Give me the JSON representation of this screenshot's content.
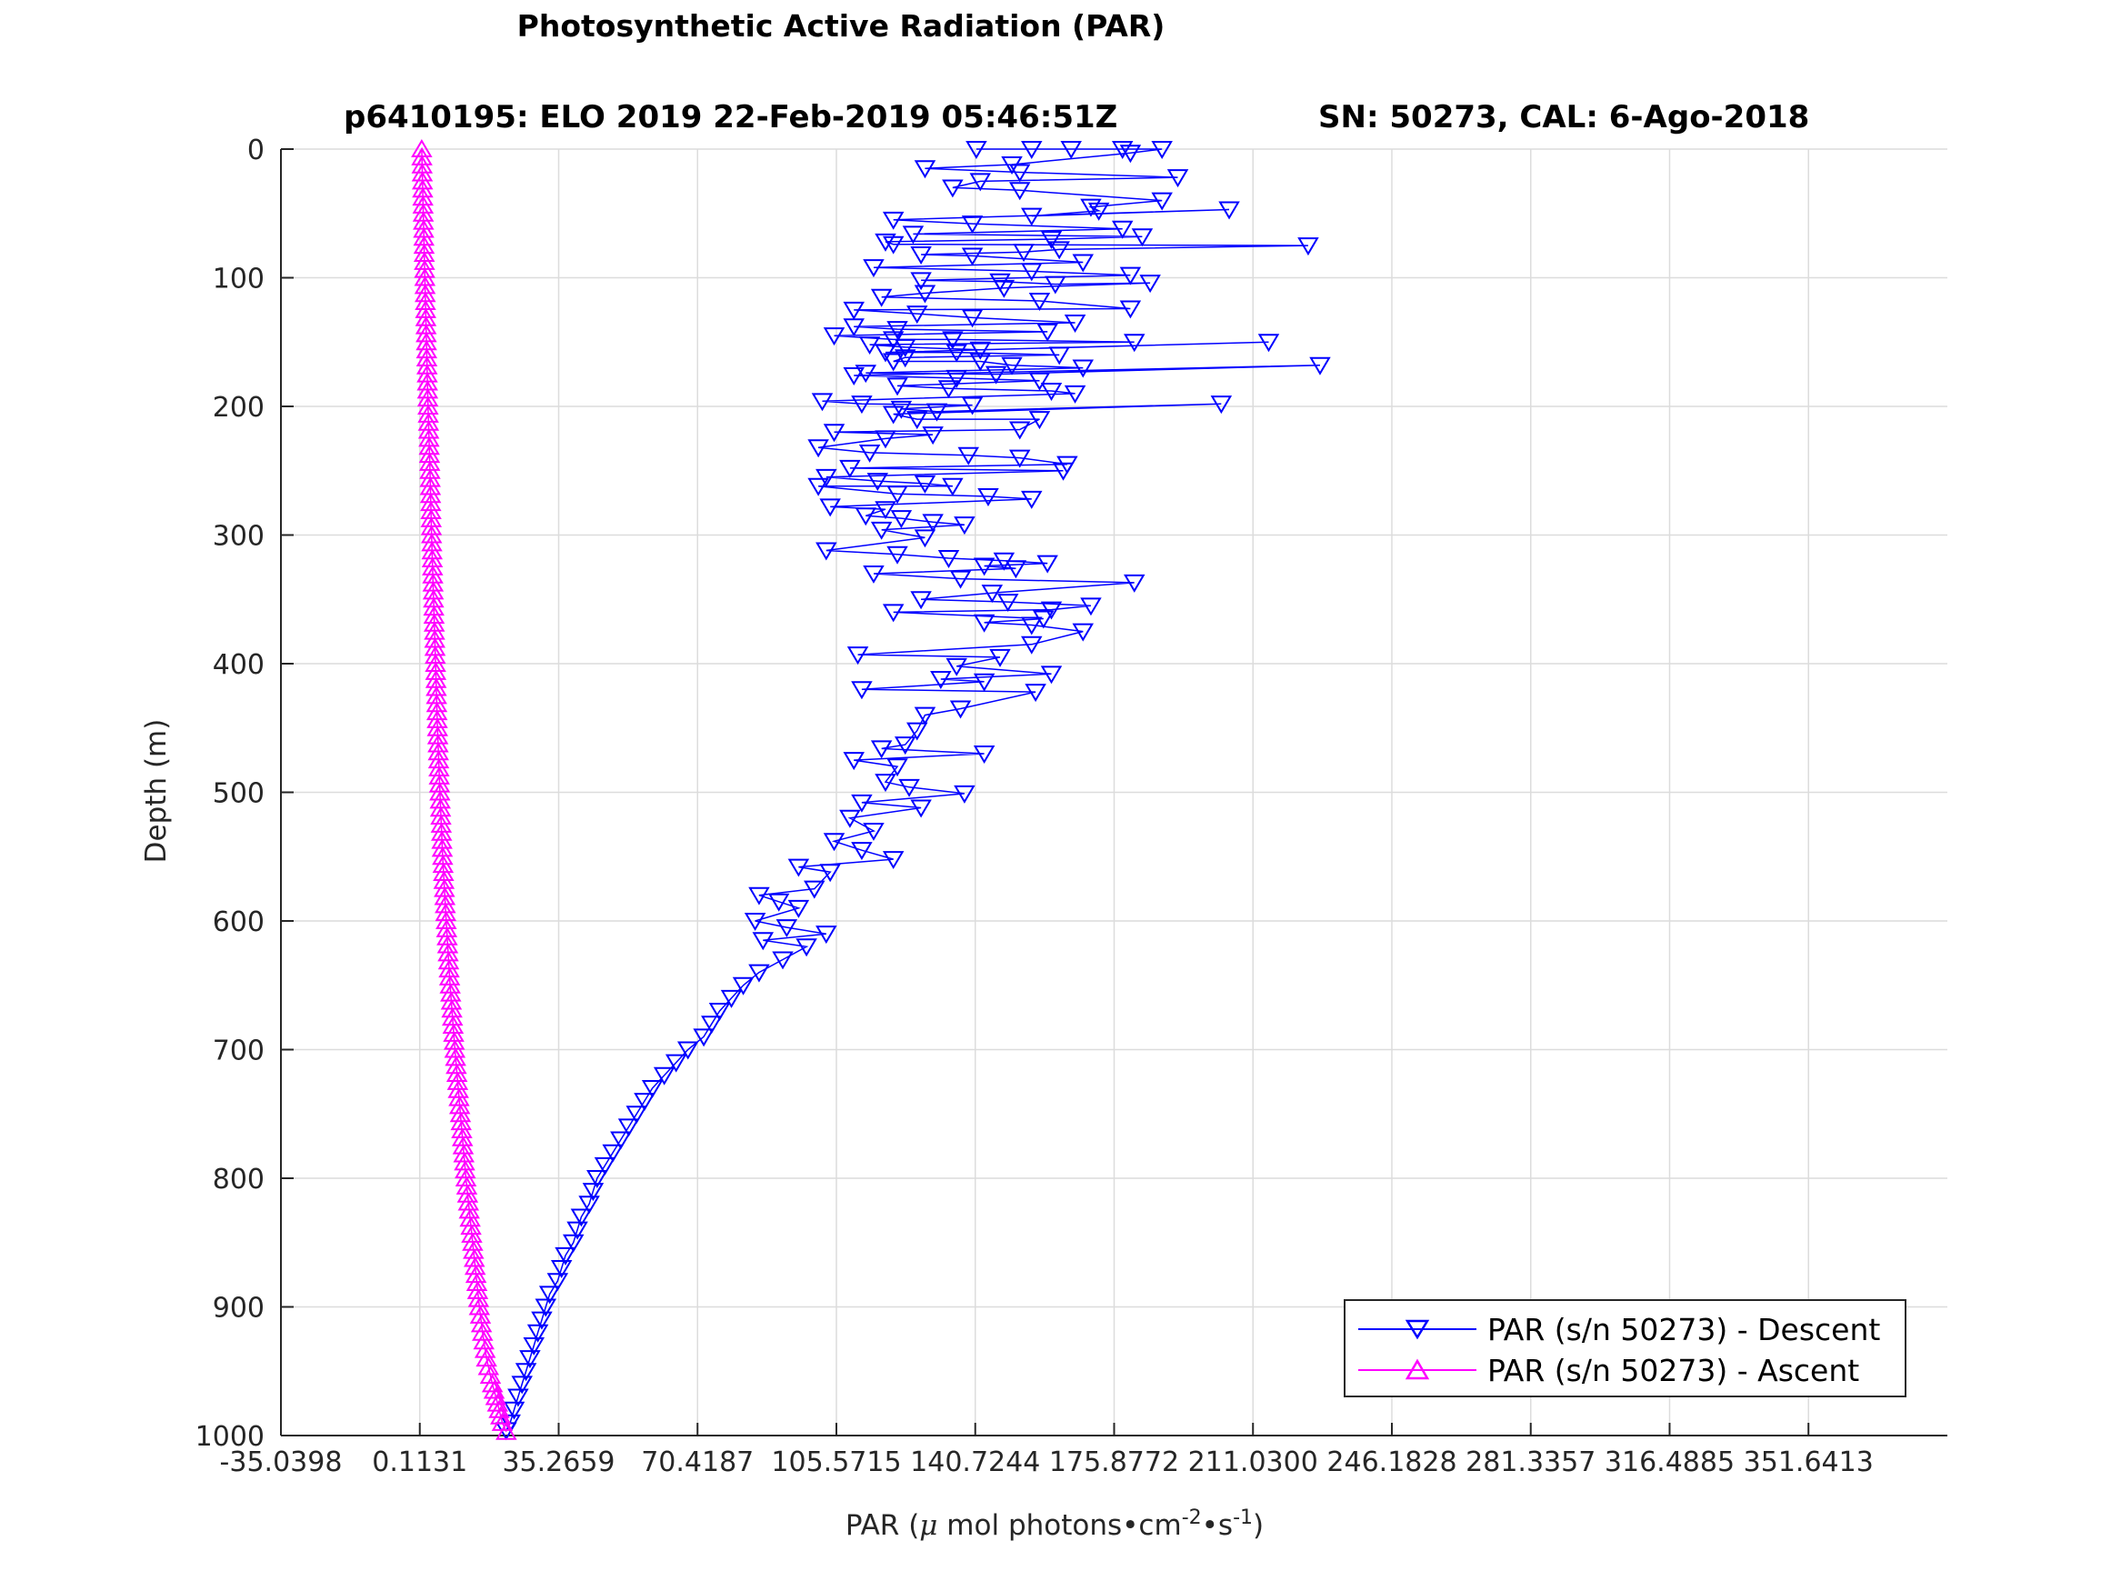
{
  "chart_data": {
    "type": "line",
    "title": "Photosynthetic Active Radiation (PAR)",
    "subtitle_left": "p6410195: ELO 2019 22-Feb-2019 05:46:51Z",
    "subtitle_right": "SN: 50273, CAL: 6-Ago-2018",
    "xlabel": {
      "prefix": "PAR (",
      "mu": "μ",
      "unit": " mol photons•cm",
      "exp1": "-2",
      "mid": "•s",
      "exp2": "-1",
      "suffix": ")"
    },
    "ylabel": "Depth (m)",
    "xlim": [
      -35.0398,
      386.8
    ],
    "ylim": [
      0,
      1000
    ],
    "y_reversed": true,
    "grid": true,
    "x_ticks": [
      -35.0398,
      0.1131,
      35.2659,
      70.4187,
      105.5715,
      140.7244,
      175.8772,
      211.03,
      246.1828,
      281.3357,
      316.4885,
      351.6413
    ],
    "x_tick_labels": [
      "-35.0398",
      "0.1131",
      "35.2659",
      "70.4187",
      "105.5715",
      "140.7244",
      "175.8772",
      "211.0300",
      "246.1828",
      "281.3357",
      "316.4885",
      "351.6413"
    ],
    "y_ticks": [
      0,
      100,
      200,
      300,
      400,
      500,
      600,
      700,
      800,
      900,
      1000
    ],
    "y_tick_labels": [
      "0",
      "100",
      "200",
      "300",
      "400",
      "500",
      "600",
      "700",
      "800",
      "900",
      "1000"
    ],
    "legend_position": "bottom-right",
    "series": [
      {
        "name": "PAR (s/n 50273) - Descent",
        "color": "#0000ff",
        "marker": "triangle-down",
        "points": [
          [
            141,
            0
          ],
          [
            155,
            0
          ],
          [
            165,
            0
          ],
          [
            178,
            0
          ],
          [
            188,
            0
          ],
          [
            180,
            3
          ],
          [
            150,
            12
          ],
          [
            128,
            15
          ],
          [
            152,
            18
          ],
          [
            192,
            22
          ],
          [
            142,
            25
          ],
          [
            135,
            30
          ],
          [
            152,
            32
          ],
          [
            188,
            40
          ],
          [
            170,
            45
          ],
          [
            172,
            48
          ],
          [
            155,
            52
          ],
          [
            205,
            47
          ],
          [
            120,
            55
          ],
          [
            140,
            58
          ],
          [
            178,
            62
          ],
          [
            125,
            66
          ],
          [
            183,
            68
          ],
          [
            160,
            70
          ],
          [
            118,
            72
          ],
          [
            120,
            74
          ],
          [
            225,
            75
          ],
          [
            162,
            78
          ],
          [
            153,
            80
          ],
          [
            127,
            82
          ],
          [
            140,
            83
          ],
          [
            168,
            88
          ],
          [
            115,
            92
          ],
          [
            155,
            95
          ],
          [
            180,
            98
          ],
          [
            127,
            102
          ],
          [
            147,
            103
          ],
          [
            161,
            105
          ],
          [
            185,
            104
          ],
          [
            148,
            108
          ],
          [
            128,
            112
          ],
          [
            117,
            115
          ],
          [
            157,
            118
          ],
          [
            180,
            124
          ],
          [
            110,
            125
          ],
          [
            126,
            128
          ],
          [
            140,
            131
          ],
          [
            166,
            135
          ],
          [
            110,
            138
          ],
          [
            121,
            140
          ],
          [
            159,
            142
          ],
          [
            105,
            145
          ],
          [
            120,
            148
          ],
          [
            135,
            148
          ],
          [
            181,
            150
          ],
          [
            114,
            152
          ],
          [
            123,
            154
          ],
          [
            142,
            156
          ],
          [
            215,
            150
          ],
          [
            118,
            158
          ],
          [
            136,
            158
          ],
          [
            162,
            160
          ],
          [
            123,
            162
          ],
          [
            120,
            165
          ],
          [
            142,
            165
          ],
          [
            150,
            168
          ],
          [
            168,
            170
          ],
          [
            113,
            174
          ],
          [
            146,
            175
          ],
          [
            228,
            168
          ],
          [
            110,
            176
          ],
          [
            136,
            178
          ],
          [
            157,
            180
          ],
          [
            121,
            184
          ],
          [
            134,
            186
          ],
          [
            160,
            188
          ],
          [
            166,
            190
          ],
          [
            102,
            196
          ],
          [
            112,
            198
          ],
          [
            140,
            199
          ],
          [
            122,
            202
          ],
          [
            131,
            204
          ],
          [
            203,
            198
          ],
          [
            120,
            206
          ],
          [
            126,
            210
          ],
          [
            157,
            210
          ],
          [
            152,
            218
          ],
          [
            105,
            220
          ],
          [
            130,
            222
          ],
          [
            118,
            225
          ],
          [
            101,
            232
          ],
          [
            114,
            236
          ],
          [
            139,
            238
          ],
          [
            152,
            240
          ],
          [
            164,
            245
          ],
          [
            109,
            248
          ],
          [
            163,
            250
          ],
          [
            103,
            255
          ],
          [
            116,
            258
          ],
          [
            128,
            260
          ],
          [
            135,
            262
          ],
          [
            101,
            262
          ],
          [
            121,
            268
          ],
          [
            144,
            270
          ],
          [
            155,
            272
          ],
          [
            104,
            278
          ],
          [
            118,
            280
          ],
          [
            113,
            285
          ],
          [
            122,
            287
          ],
          [
            130,
            290
          ],
          [
            138,
            292
          ],
          [
            117,
            296
          ],
          [
            128,
            302
          ],
          [
            103,
            312
          ],
          [
            121,
            315
          ],
          [
            134,
            318
          ],
          [
            148,
            320
          ],
          [
            159,
            322
          ],
          [
            143,
            324
          ],
          [
            151,
            326
          ],
          [
            115,
            330
          ],
          [
            137,
            334
          ],
          [
            181,
            337
          ],
          [
            145,
            345
          ],
          [
            127,
            350
          ],
          [
            149,
            352
          ],
          [
            170,
            355
          ],
          [
            160,
            358
          ],
          [
            120,
            360
          ],
          [
            158,
            365
          ],
          [
            143,
            368
          ],
          [
            155,
            370
          ],
          [
            168,
            375
          ],
          [
            155,
            385
          ],
          [
            111,
            393
          ],
          [
            147,
            395
          ],
          [
            136,
            402
          ],
          [
            160,
            408
          ],
          [
            132,
            412
          ],
          [
            143,
            414
          ],
          [
            112,
            420
          ],
          [
            156,
            422
          ],
          [
            137,
            435
          ],
          [
            128,
            440
          ],
          [
            126,
            452
          ],
          [
            123,
            463
          ],
          [
            117,
            466
          ],
          [
            143,
            470
          ],
          [
            110,
            475
          ],
          [
            121,
            480
          ],
          [
            118,
            492
          ],
          [
            124,
            496
          ],
          [
            138,
            501
          ],
          [
            112,
            508
          ],
          [
            127,
            512
          ],
          [
            109,
            520
          ],
          [
            115,
            530
          ],
          [
            105,
            538
          ],
          [
            112,
            545
          ],
          [
            120,
            552
          ],
          [
            96,
            558
          ],
          [
            104,
            562
          ],
          [
            100,
            575
          ],
          [
            86,
            580
          ],
          [
            91,
            585
          ],
          [
            96,
            590
          ],
          [
            85,
            600
          ],
          [
            93,
            605
          ],
          [
            103,
            610
          ],
          [
            87,
            615
          ],
          [
            98,
            620
          ],
          [
            92,
            630
          ],
          [
            86,
            640
          ],
          [
            82,
            650
          ],
          [
            79,
            660
          ],
          [
            76,
            670
          ],
          [
            74,
            680
          ],
          [
            72,
            690
          ],
          [
            68,
            700
          ],
          [
            65,
            710
          ],
          [
            62,
            720
          ],
          [
            59,
            730
          ],
          [
            57,
            740
          ],
          [
            55,
            750
          ],
          [
            53,
            760
          ],
          [
            51,
            770
          ],
          [
            49,
            780
          ],
          [
            47,
            790
          ],
          [
            45,
            800
          ],
          [
            44,
            810
          ],
          [
            43,
            820
          ],
          [
            41,
            830
          ],
          [
            40,
            840
          ],
          [
            39,
            850
          ],
          [
            37,
            860
          ],
          [
            36,
            870
          ],
          [
            35,
            880
          ],
          [
            33,
            890
          ],
          [
            32,
            900
          ],
          [
            31,
            910
          ],
          [
            30,
            920
          ],
          [
            29,
            930
          ],
          [
            28,
            940
          ],
          [
            27,
            950
          ],
          [
            26,
            960
          ],
          [
            25,
            970
          ],
          [
            24,
            980
          ],
          [
            23,
            990
          ],
          [
            22,
            996
          ]
        ]
      },
      {
        "name": "PAR (s/n 50273) - Ascent",
        "color": "#ff00ff",
        "marker": "triangle-up",
        "points": [
          [
            0.6,
            0
          ],
          [
            1.0,
            50
          ],
          [
            1.4,
            100
          ],
          [
            1.8,
            150
          ],
          [
            2.2,
            200
          ],
          [
            2.7,
            250
          ],
          [
            3.1,
            300
          ],
          [
            3.6,
            350
          ],
          [
            4.1,
            400
          ],
          [
            4.6,
            450
          ],
          [
            5.2,
            500
          ],
          [
            5.9,
            550
          ],
          [
            6.8,
            600
          ],
          [
            7.8,
            650
          ],
          [
            9.0,
            700
          ],
          [
            10.4,
            750
          ],
          [
            11.8,
            800
          ],
          [
            13.5,
            850
          ],
          [
            15.2,
            900
          ],
          [
            16.0,
            920
          ],
          [
            17.0,
            940
          ],
          [
            18.5,
            960
          ],
          [
            19.8,
            975
          ],
          [
            21.0,
            990
          ],
          [
            22.0,
            997
          ]
        ]
      }
    ]
  }
}
